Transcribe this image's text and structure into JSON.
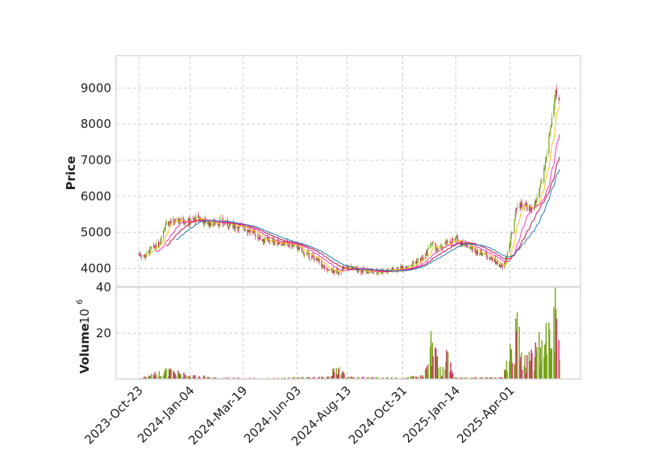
{
  "chart_data": {
    "type": "candlestick",
    "style": "seaborn-whitegrid",
    "grid": true,
    "colors": {
      "up": "#77a31a",
      "down": "#d6266e",
      "ma_short": "#f5c518",
      "ma_mid": "#ff35c0",
      "ma_long": "#c0134f",
      "ma_longest": "#2a7ab8",
      "grid": "#cccccc",
      "frame": "#d9d9d9"
    },
    "price_panel": {
      "ylabel": "Price",
      "ylim": [
        3500,
        9900
      ],
      "yticks": [
        4000,
        5000,
        6000,
        7000,
        8000,
        9000
      ],
      "ytick_labels": [
        "4000",
        "5000",
        "6000",
        "7000",
        "8000",
        "9000"
      ]
    },
    "volume_panel": {
      "ylabel": "Volume",
      "scale_label": "10",
      "scale_exp": "6",
      "ylim": [
        0,
        40
      ],
      "yticks": [
        20,
        40
      ],
      "ytick_labels": [
        "20",
        "40"
      ]
    },
    "x_axis": {
      "start": "2023-10-23",
      "end": "2025-06-10",
      "ticks": [
        "2023-10-23",
        "2024-01-04",
        "2024-03-19",
        "2024-06-03",
        "2024-08-13",
        "2024-10-31",
        "2025-01-14",
        "2025-04-01"
      ],
      "tick_labels": [
        "2023-Oct-23",
        "2024-Jan-04",
        "2024-Mar-19",
        "2024-Jun-03",
        "2024-Aug-13",
        "2024-Oct-31",
        "2025-Jan-14",
        "2025-Apr-01"
      ]
    },
    "price_anchors": [
      [
        "2023-10-23",
        4400
      ],
      [
        "2023-11-01",
        4350
      ],
      [
        "2023-11-10",
        4550
      ],
      [
        "2023-11-20",
        4650
      ],
      [
        "2023-12-01",
        5300
      ],
      [
        "2023-12-10",
        5250
      ],
      [
        "2023-12-20",
        5350
      ],
      [
        "2024-01-04",
        5300
      ],
      [
        "2024-01-15",
        5400
      ],
      [
        "2024-01-31",
        5250
      ],
      [
        "2024-02-15",
        5300
      ],
      [
        "2024-02-29",
        5200
      ],
      [
        "2024-03-19",
        5150
      ],
      [
        "2024-04-01",
        5000
      ],
      [
        "2024-04-15",
        4800
      ],
      [
        "2024-05-01",
        4750
      ],
      [
        "2024-05-15",
        4700
      ],
      [
        "2024-06-03",
        4600
      ],
      [
        "2024-06-15",
        4400
      ],
      [
        "2024-07-01",
        4250
      ],
      [
        "2024-07-15",
        3950
      ],
      [
        "2024-08-01",
        3900
      ],
      [
        "2024-08-13",
        4050
      ],
      [
        "2024-09-01",
        3950
      ],
      [
        "2024-09-20",
        3900
      ],
      [
        "2024-10-10",
        3950
      ],
      [
        "2024-10-31",
        4000
      ],
      [
        "2024-11-15",
        4150
      ],
      [
        "2024-12-01",
        4300
      ],
      [
        "2024-12-10",
        4700
      ],
      [
        "2024-12-20",
        4500
      ],
      [
        "2025-01-01",
        4700
      ],
      [
        "2025-01-14",
        4800
      ],
      [
        "2025-01-25",
        4700
      ],
      [
        "2025-02-10",
        4500
      ],
      [
        "2025-02-25",
        4400
      ],
      [
        "2025-03-10",
        4200
      ],
      [
        "2025-03-22",
        4000
      ],
      [
        "2025-04-01",
        4700
      ],
      [
        "2025-04-10",
        5700
      ],
      [
        "2025-04-20",
        5800
      ],
      [
        "2025-04-30",
        5600
      ],
      [
        "2025-05-10",
        5900
      ],
      [
        "2025-05-20",
        6800
      ],
      [
        "2025-05-28",
        7900
      ],
      [
        "2025-06-05",
        8800
      ],
      [
        "2025-06-10",
        8600
      ]
    ],
    "volume_anchors": [
      [
        "2023-10-23",
        0.2
      ],
      [
        "2023-12-01",
        3.5
      ],
      [
        "2023-12-10",
        3.0
      ],
      [
        "2024-01-04",
        1.5
      ],
      [
        "2024-02-15",
        0.5
      ],
      [
        "2024-04-15",
        0.3
      ],
      [
        "2024-06-03",
        0.6
      ],
      [
        "2024-07-15",
        0.8
      ],
      [
        "2024-08-01",
        5.0
      ],
      [
        "2024-08-13",
        0.8
      ],
      [
        "2024-10-31",
        0.4
      ],
      [
        "2024-12-01",
        1.5
      ],
      [
        "2024-12-10",
        15.5
      ],
      [
        "2024-12-25",
        2.0
      ],
      [
        "2025-01-01",
        12.0
      ],
      [
        "2025-01-14",
        0.6
      ],
      [
        "2025-03-22",
        0.6
      ],
      [
        "2025-04-01",
        12.0
      ],
      [
        "2025-04-10",
        22.0
      ],
      [
        "2025-04-20",
        8.0
      ],
      [
        "2025-05-01",
        10.0
      ],
      [
        "2025-05-10",
        14.0
      ],
      [
        "2025-05-20",
        15.0
      ],
      [
        "2025-05-28",
        25.0
      ],
      [
        "2025-06-05",
        35.0
      ],
      [
        "2025-06-10",
        6.0
      ]
    ],
    "moving_averages": [
      {
        "window": 10,
        "color_key": "ma_short"
      },
      {
        "window": 20,
        "color_key": "ma_mid"
      },
      {
        "window": 30,
        "color_key": "ma_long"
      },
      {
        "window": 40,
        "color_key": "ma_longest"
      }
    ]
  }
}
